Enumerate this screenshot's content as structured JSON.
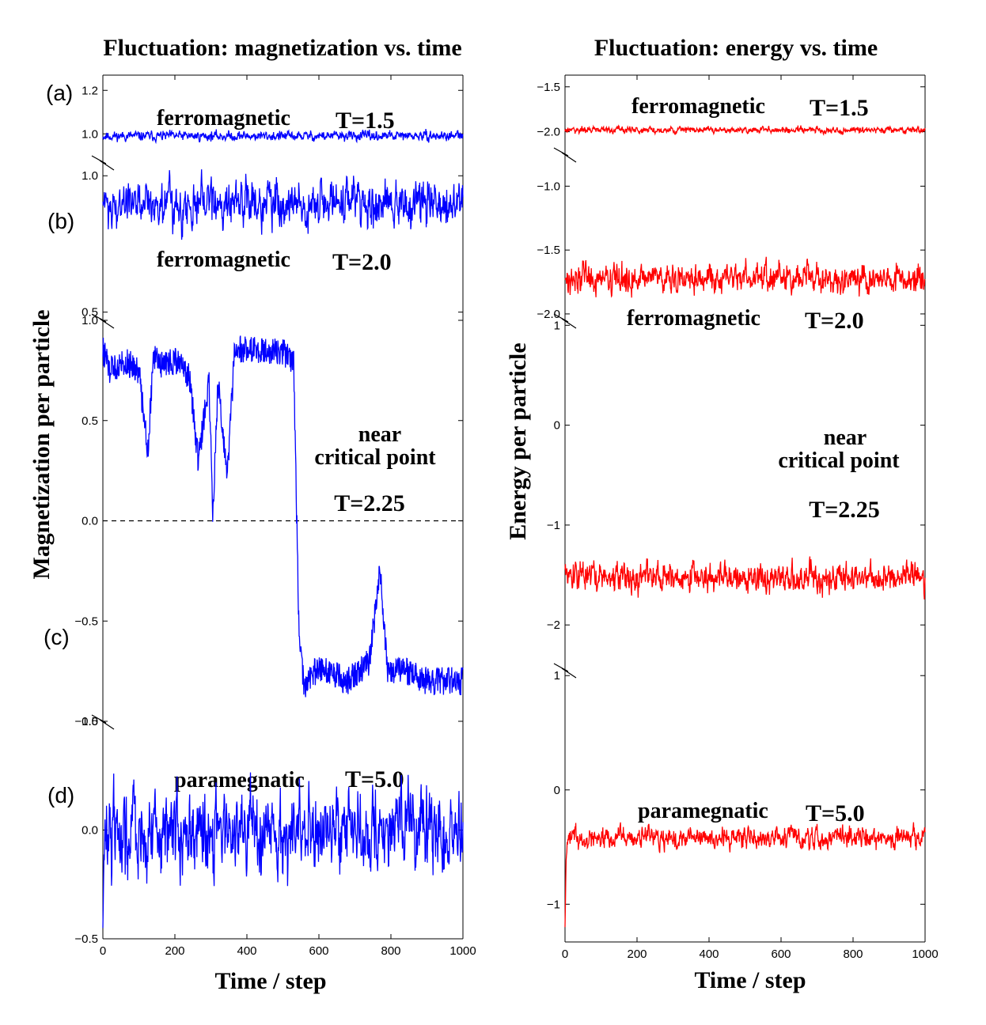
{
  "chart_data": [
    {
      "type": "line",
      "title": "Fluctuation:  magnetization vs. time",
      "xlabel": "Time / step",
      "ylabel": "Magnetization per particle",
      "xlim": [
        0,
        1000
      ],
      "x_ticks": [
        "0",
        "200",
        "400",
        "600",
        "800",
        "1000"
      ],
      "line_color": "#0000ff",
      "panels": [
        {
          "label": "(a)",
          "annotations": [
            "ferromagnetic",
            "T=1.5"
          ],
          "ylim": [
            0.87,
            1.27
          ],
          "y_ticks": [
            "1.0",
            "1.2"
          ],
          "series": {
            "x": [
              0,
              1000
            ],
            "mean": 0.99,
            "noise": 0.012,
            "pattern": "stationary"
          }
        },
        {
          "label": "(b)",
          "annotations": [
            "ferromagnetic",
            "T=2.0"
          ],
          "ylim": [
            0.47,
            1.05
          ],
          "y_ticks": [
            "0.5",
            "1.0"
          ],
          "series": {
            "x": [
              0,
              1000
            ],
            "mean": 0.9,
            "noise": 0.045,
            "pattern": "stationary"
          }
        },
        {
          "label": "(c)",
          "annotations": [
            "near",
            "critical point",
            "T=2.25"
          ],
          "ylim": [
            -1.0,
            1.0
          ],
          "y_ticks": [
            "−1.0",
            "−0.5",
            "0.0",
            "0.5",
            "1.0"
          ],
          "reference_line": 0.0,
          "series": {
            "x": [
              0,
              20,
              60,
              100,
              125,
              140,
              160,
              200,
              240,
              265,
              295,
              305,
              320,
              345,
              365,
              380,
              420,
              500,
              530,
              545,
              560,
              580,
              620,
              680,
              740,
              770,
              790,
              840,
              900,
              1000
            ],
            "y": [
              0.85,
              0.75,
              0.8,
              0.75,
              0.35,
              0.82,
              0.78,
              0.8,
              0.72,
              0.3,
              0.7,
              0.02,
              0.7,
              0.2,
              0.82,
              0.86,
              0.85,
              0.84,
              0.8,
              -0.6,
              -0.85,
              -0.75,
              -0.75,
              -0.8,
              -0.7,
              -0.25,
              -0.75,
              -0.75,
              -0.8,
              -0.8
            ]
          }
        },
        {
          "label": "(d)",
          "annotations": [
            "paramegnatic",
            "T=5.0"
          ],
          "ylim": [
            -0.5,
            0.5
          ],
          "y_ticks": [
            "−0.5",
            "0.0",
            "0.5"
          ],
          "series": {
            "x": [
              0,
              1000
            ],
            "start": -0.45,
            "mean": 0.0,
            "noise": 0.1,
            "pattern": "stationary"
          }
        }
      ]
    },
    {
      "type": "line",
      "title": "Fluctuation:  energy vs. time",
      "xlabel": "Time / step",
      "ylabel": "Energy per particle",
      "xlim": [
        0,
        1000
      ],
      "x_ticks": [
        "0",
        "200",
        "400",
        "600",
        "800",
        "1000"
      ],
      "line_color": "#ff0000",
      "panels": [
        {
          "annotations": [
            "ferromagnetic",
            "T=1.5"
          ],
          "ylim": [
            -2.25,
            -1.37
          ],
          "y_ticks": [
            "−2.0",
            "−1.5"
          ],
          "series": {
            "x": [
              0,
              1000
            ],
            "mean": -1.98,
            "noise": 0.02,
            "pattern": "stationary"
          }
        },
        {
          "annotations": [
            "ferromagnetic",
            "T=2.0"
          ],
          "ylim": [
            -2.05,
            -0.75
          ],
          "y_ticks": [
            "−2.0",
            "−1.5",
            "−1.0"
          ],
          "series": {
            "x": [
              0,
              1000
            ],
            "mean": -1.72,
            "noise": 0.06,
            "pattern": "stationary"
          }
        },
        {
          "annotations": [
            "near",
            "critical point",
            "T=2.25"
          ],
          "ylim": [
            -2.45,
            1.05
          ],
          "y_ticks": [
            "−2",
            "−1",
            "0",
            "1"
          ],
          "series": {
            "x": [
              0,
              1000
            ],
            "mean": -1.52,
            "noise": 0.08,
            "pattern": "stationary"
          }
        },
        {
          "annotations": [
            "paramegnatic",
            "T=5.0"
          ],
          "ylim": [
            -1.33,
            1.05
          ],
          "y_ticks": [
            "−1",
            "0",
            "1"
          ],
          "series": {
            "x": [
              0,
              1000
            ],
            "start": -1.2,
            "mean": -0.42,
            "noise": 0.05,
            "pattern": "stationary"
          }
        }
      ]
    }
  ]
}
